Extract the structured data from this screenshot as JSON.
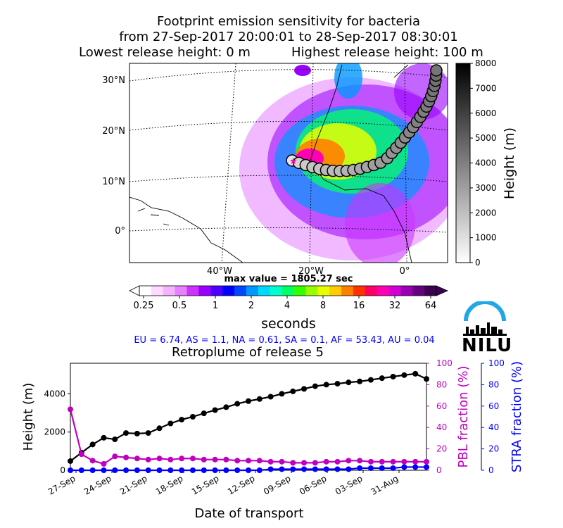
{
  "header": {
    "line1": "Footprint emission sensitivity for bacteria",
    "line2": "from 27-Sep-2017 20:00:01 to 28-Sep-2017 08:30:01",
    "lowest": "Lowest release height: 0 m",
    "highest": "Highest release height: 100 m"
  },
  "map": {
    "lat_labels": [
      "30°N",
      "20°N",
      "10°N",
      "0°"
    ],
    "lon_labels": [
      "40°W",
      "20°W",
      "0°"
    ],
    "height_colorbar": {
      "label": "Height (m)",
      "ticks": [
        "0",
        "1000",
        "2000",
        "3000",
        "4000",
        "5000",
        "6000",
        "7000",
        "8000"
      ]
    },
    "max_value": "max value = 1805.27 sec",
    "sensitivity_colorbar": {
      "ticks": [
        "0.25",
        "0.5",
        "1",
        "2",
        "4",
        "8",
        "16",
        "32",
        "64"
      ],
      "label": "seconds",
      "colors": [
        "#ffffff",
        "#ffd9ff",
        "#f5b3ff",
        "#e680ff",
        "#cc33ff",
        "#9900ff",
        "#4d00ff",
        "#0000ff",
        "#0047ff",
        "#0099ff",
        "#00d9ff",
        "#00ffcc",
        "#00ff66",
        "#33ff00",
        "#99ff00",
        "#e5ff00",
        "#ffcc00",
        "#ff8000",
        "#ff3300",
        "#ff0066",
        "#ff00b3",
        "#d400d4",
        "#9900b3",
        "#660080",
        "#3d0050"
      ]
    },
    "trajectory_heights_m": [
      300,
      900,
      1300,
      1650,
      1600,
      1950,
      1900,
      1950,
      2200,
      2450,
      2700,
      2800,
      3000,
      3200,
      3300,
      3500,
      3650,
      3750,
      3850,
      4000,
      4100,
      4250,
      4350,
      4400,
      4450,
      4550,
      4600,
      4700,
      4800,
      4850,
      4900,
      4700
    ]
  },
  "regions_text": "EU = 6.74,  AS = 1.1,  NA = 0.61,  SA = 0.1,  AF = 53.43,  AU = 0.04",
  "logo_text": "NILU",
  "chart_data": {
    "type": "line",
    "title": "Retroplume of release 5",
    "xlabel": "Date of transport",
    "ylabel": "Height (m)",
    "ylabel_right1": "PBL fraction (%)",
    "ylabel_right2": "STRA fraction (%)",
    "x_tick_labels": [
      "27-Sep",
      "24-Sep",
      "21-Sep",
      "18-Sep",
      "15-Sep",
      "12-Sep",
      "09-Sep",
      "06-Sep",
      "03-Sep",
      "31-Aug"
    ],
    "ylim": [
      0,
      5600
    ],
    "y_ticks": [
      "0",
      "2000",
      "4000"
    ],
    "ylim_right": [
      0,
      100
    ],
    "y_right_ticks": [
      "0",
      "20",
      "40",
      "60",
      "80",
      "100"
    ],
    "series": [
      {
        "color": "#000000",
        "axis": "left",
        "values": [
          480,
          920,
          1350,
          1700,
          1620,
          1950,
          1920,
          1950,
          2200,
          2450,
          2650,
          2800,
          2980,
          3150,
          3300,
          3480,
          3620,
          3730,
          3850,
          4000,
          4130,
          4260,
          4400,
          4480,
          4530,
          4600,
          4650,
          4730,
          4820,
          4900,
          4980,
          5050,
          4780
        ]
      },
      {
        "color": "#bf00bf",
        "axis": "right",
        "values": [
          57,
          15,
          9,
          6,
          13,
          12,
          11,
          10,
          11,
          10,
          11,
          11,
          10,
          10,
          10,
          9,
          9,
          9,
          8,
          8,
          7,
          7,
          7,
          8,
          8,
          9,
          9,
          8,
          8,
          8,
          8,
          8,
          8
        ]
      },
      {
        "color": "#0000ff",
        "axis": "right2",
        "values": [
          0,
          0,
          0,
          0,
          0,
          0,
          0,
          0,
          0,
          0,
          0,
          0,
          0,
          0,
          0,
          0,
          0,
          0,
          1,
          1,
          1,
          1,
          1,
          1,
          1,
          1,
          2,
          2,
          2,
          2,
          3,
          3,
          3
        ]
      }
    ]
  }
}
